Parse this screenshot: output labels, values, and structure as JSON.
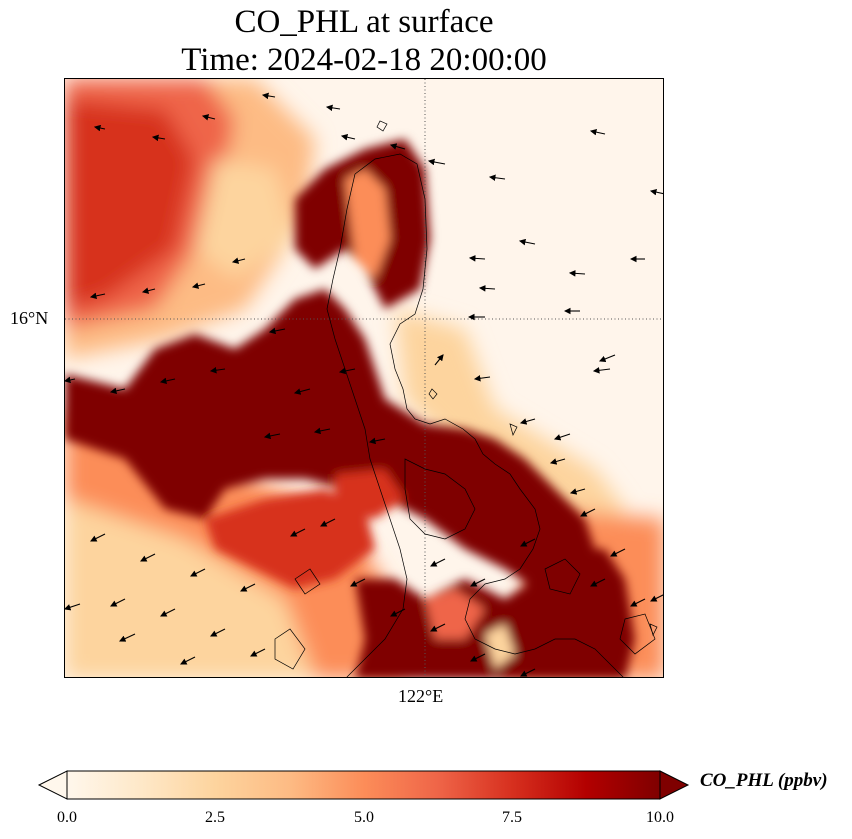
{
  "title": {
    "line1": "CO_PHL at surface",
    "line2": "Time: 2024-02-18 20:00:00"
  },
  "axes": {
    "lat_label": "16°N",
    "lon_label": "122°E",
    "gridlines": "dotted"
  },
  "colorbar": {
    "label": "CO_PHL (ppbv)",
    "min": 0.0,
    "max": 10.0,
    "extend": "both",
    "ticks": [
      "0.0",
      "2.5",
      "5.0",
      "7.5",
      "10.0"
    ],
    "colormap": "OrRd",
    "colors": [
      "#fff7ec",
      "#fee8c8",
      "#fdd49e",
      "#fdbb84",
      "#fc8d59",
      "#ef6548",
      "#d7301f",
      "#b30000",
      "#7f0000"
    ]
  },
  "map": {
    "field": "CO_PHL",
    "overlays": [
      "coastlines",
      "wind-vectors"
    ],
    "background_color": "#fff5eb"
  }
}
